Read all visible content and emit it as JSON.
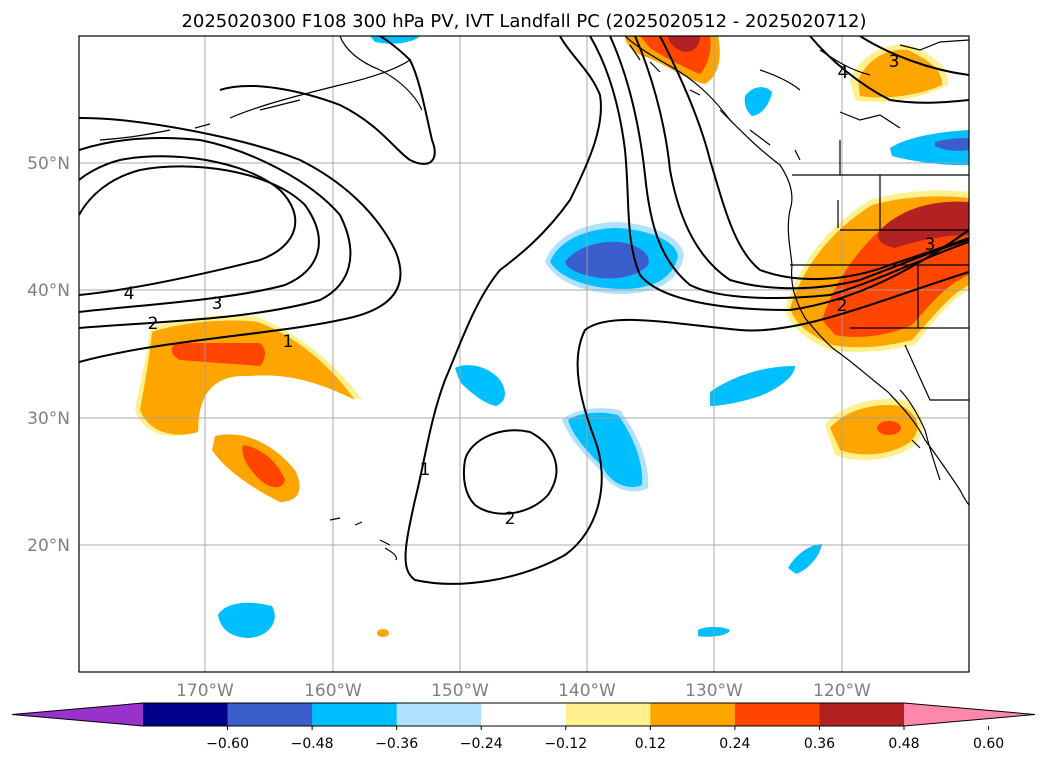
{
  "title": "2025020300 F108 300 hPa PV, IVT Landfall PC (2025020512 - 2025020712)",
  "lat_labels": [
    "50°N",
    "40°N",
    "30°N",
    "20°N"
  ],
  "lon_labels": [
    "170°W",
    "160°W",
    "150°W",
    "140°W",
    "130°W",
    "120°W"
  ],
  "colorbar": {
    "ticks": [
      "−0.60",
      "−0.48",
      "−0.36",
      "−0.24",
      "−0.12",
      "0.12",
      "0.24",
      "0.36",
      "0.48",
      "0.60"
    ],
    "colors": [
      "#9932cc",
      "#00008b",
      "#3a5fcd",
      "#00bfff",
      "#b0e2ff",
      "#ffffff",
      "#fff08f",
      "#ffa500",
      "#ff4500",
      "#b22222",
      "#ff88aa"
    ]
  },
  "contour_labels": [
    "4",
    "3",
    "2",
    "1",
    "1",
    "2",
    "2",
    "3",
    "3",
    "4"
  ],
  "colors": {
    "land": "#000000",
    "grid": "#a0a0a0",
    "contour": "#000000"
  }
}
